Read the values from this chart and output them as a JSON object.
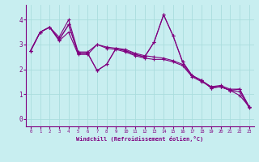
{
  "xlabel": "Windchill (Refroidissement éolien,°C)",
  "background_color": "#c8eef0",
  "line_color": "#800080",
  "grid_color": "#aadddd",
  "axis_color": "#800080",
  "xlim": [
    -0.5,
    23.5
  ],
  "ylim": [
    -0.3,
    4.6
  ],
  "xticks": [
    0,
    1,
    2,
    3,
    4,
    5,
    6,
    7,
    8,
    9,
    10,
    11,
    12,
    13,
    14,
    15,
    16,
    17,
    18,
    19,
    20,
    21,
    22,
    23
  ],
  "yticks": [
    0,
    1,
    2,
    3,
    4
  ],
  "series": [
    [
      2.75,
      3.5,
      3.7,
      3.3,
      4.0,
      2.7,
      2.7,
      3.0,
      2.9,
      2.85,
      2.8,
      2.65,
      2.55,
      2.5,
      2.45,
      2.35,
      2.2,
      1.75,
      1.55,
      1.3,
      1.35,
      1.2,
      1.2,
      0.5
    ],
    [
      2.75,
      3.5,
      3.7,
      3.2,
      3.8,
      2.65,
      2.65,
      1.95,
      2.2,
      2.85,
      2.75,
      2.6,
      2.5,
      3.1,
      4.2,
      3.35,
      2.3,
      1.75,
      1.55,
      1.25,
      1.3,
      1.15,
      1.2,
      0.5
    ],
    [
      2.75,
      3.5,
      3.7,
      3.2,
      3.8,
      2.65,
      2.65,
      1.95,
      2.2,
      2.85,
      2.75,
      2.6,
      2.5,
      3.1,
      4.2,
      3.35,
      2.3,
      1.75,
      1.55,
      1.25,
      1.3,
      1.15,
      0.95,
      0.5
    ],
    [
      2.75,
      3.5,
      3.7,
      3.15,
      3.5,
      2.6,
      2.6,
      3.0,
      2.85,
      2.8,
      2.7,
      2.55,
      2.45,
      2.4,
      2.4,
      2.3,
      2.15,
      1.7,
      1.5,
      1.3,
      1.3,
      1.15,
      1.1,
      0.45
    ]
  ],
  "figsize": [
    3.2,
    2.0
  ],
  "dpi": 100
}
